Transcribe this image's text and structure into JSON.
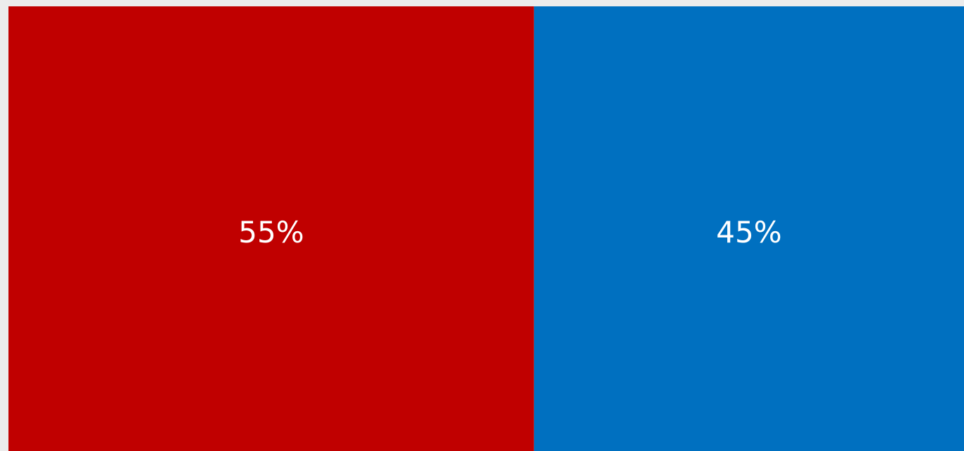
{
  "chart_data": {
    "type": "bar",
    "stacked": true,
    "orientation": "horizontal",
    "values": [
      55,
      45
    ],
    "value_labels": [
      "55%",
      "45%"
    ],
    "colors": [
      "#c00000",
      "#0070c0"
    ],
    "xlim": [
      0,
      100
    ]
  }
}
